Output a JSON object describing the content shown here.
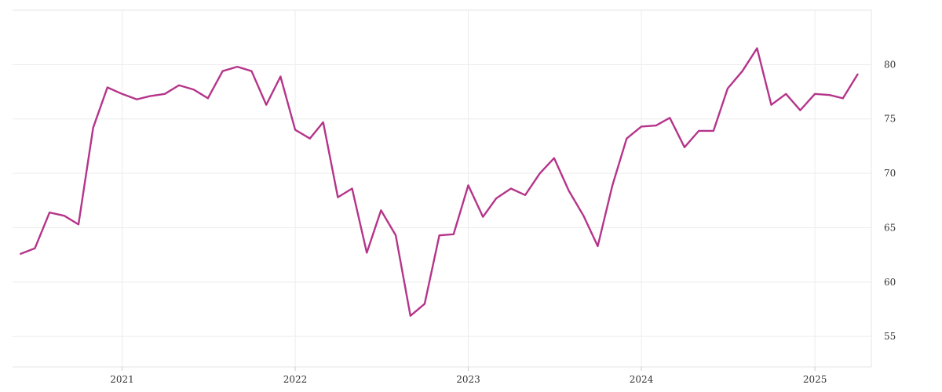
{
  "chart_data": {
    "type": "line",
    "title": "",
    "xlabel": "",
    "ylabel": "",
    "x_range": [
      "2020-05-15",
      "2025-04-30"
    ],
    "ylim": [
      52.2,
      85
    ],
    "y_axis_side": "right",
    "grid": true,
    "legend": "none",
    "x_ticks": [
      {
        "date": "2021-01-01",
        "label": "2021"
      },
      {
        "date": "2022-01-01",
        "label": "2022"
      },
      {
        "date": "2023-01-01",
        "label": "2023"
      },
      {
        "date": "2024-01-01",
        "label": "2024"
      },
      {
        "date": "2025-01-01",
        "label": "2025"
      }
    ],
    "y_ticks": [
      55,
      60,
      65,
      70,
      75,
      80
    ],
    "series": [
      {
        "color": "#b5348a",
        "points": [
          [
            "2020-06",
            62.6
          ],
          [
            "2020-07",
            63.1
          ],
          [
            "2020-08",
            66.4
          ],
          [
            "2020-09",
            66.1
          ],
          [
            "2020-10",
            65.3
          ],
          [
            "2020-11",
            74.2
          ],
          [
            "2020-12",
            77.9
          ],
          [
            "2021-01",
            77.3
          ],
          [
            "2021-02",
            76.8
          ],
          [
            "2021-03",
            77.1
          ],
          [
            "2021-04",
            77.3
          ],
          [
            "2021-05",
            78.1
          ],
          [
            "2021-06",
            77.7
          ],
          [
            "2021-07",
            76.9
          ],
          [
            "2021-08",
            79.4
          ],
          [
            "2021-09",
            79.8
          ],
          [
            "2021-10",
            79.4
          ],
          [
            "2021-11",
            76.3
          ],
          [
            "2021-12",
            78.9
          ],
          [
            "2022-01",
            74.0
          ],
          [
            "2022-02",
            73.2
          ],
          [
            "2022-03",
            74.7
          ],
          [
            "2022-04",
            67.8
          ],
          [
            "2022-05",
            68.6
          ],
          [
            "2022-06",
            62.7
          ],
          [
            "2022-07",
            66.6
          ],
          [
            "2022-08",
            64.3
          ],
          [
            "2022-09",
            56.9
          ],
          [
            "2022-10",
            58.0
          ],
          [
            "2022-11",
            64.3
          ],
          [
            "2022-12",
            64.4
          ],
          [
            "2023-01",
            68.9
          ],
          [
            "2023-02",
            66.0
          ],
          [
            "2023-03",
            67.7
          ],
          [
            "2023-04",
            68.6
          ],
          [
            "2023-05",
            68.0
          ],
          [
            "2023-06",
            70.0
          ],
          [
            "2023-07",
            71.4
          ],
          [
            "2023-08",
            68.4
          ],
          [
            "2023-09",
            66.1
          ],
          [
            "2023-10",
            63.3
          ],
          [
            "2023-11",
            68.9
          ],
          [
            "2023-12",
            73.2
          ],
          [
            "2024-01",
            74.3
          ],
          [
            "2024-02",
            74.4
          ],
          [
            "2024-03",
            75.1
          ],
          [
            "2024-04",
            72.4
          ],
          [
            "2024-05",
            73.9
          ],
          [
            "2024-06",
            73.9
          ],
          [
            "2024-07",
            77.8
          ],
          [
            "2024-08",
            79.4
          ],
          [
            "2024-09",
            81.5
          ],
          [
            "2024-10",
            76.3
          ],
          [
            "2024-11",
            77.3
          ],
          [
            "2024-12",
            75.8
          ],
          [
            "2025-01",
            77.3
          ],
          [
            "2025-02",
            77.2
          ],
          [
            "2025-03",
            76.9
          ],
          [
            "2025-04",
            79.1
          ]
        ]
      }
    ]
  }
}
